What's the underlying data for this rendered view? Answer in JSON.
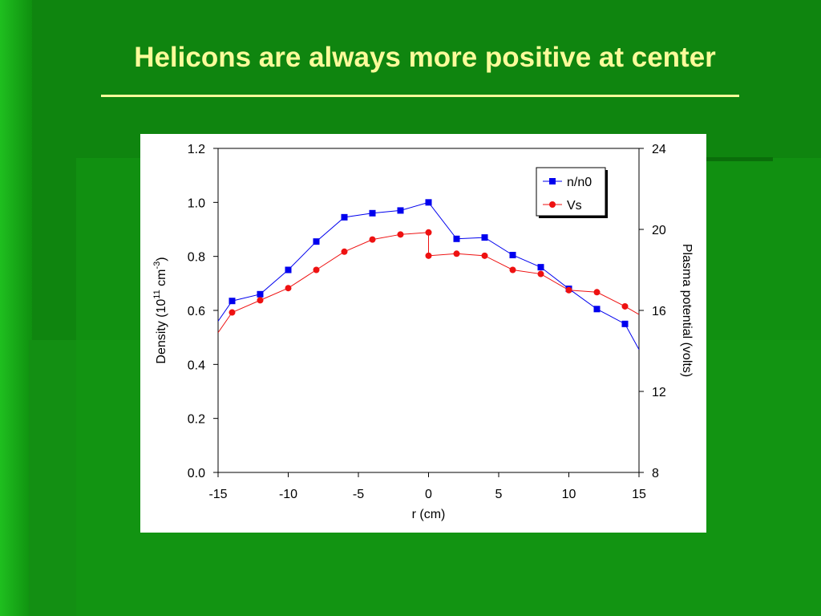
{
  "slide": {
    "title": "Helicons are always more positive at center"
  },
  "colors": {
    "background": "#0f850f",
    "title": "#fbfb9a",
    "series_density": "#0000ee",
    "series_vs": "#ee1111"
  },
  "chart_data": {
    "type": "line",
    "title": "",
    "xlabel": "r (cm)",
    "ylabel_left": "Density (10^11 cm^-3)",
    "ylabel_right": "Plasma potential (volts)",
    "xlim": [
      -15,
      15
    ],
    "ylim_left": [
      0.0,
      1.2
    ],
    "ylim_right": [
      8,
      24
    ],
    "x_ticks": [
      "-15",
      "-10",
      "-5",
      "0",
      "5",
      "10",
      "15"
    ],
    "y_left_ticks": [
      "0.0",
      "0.2",
      "0.4",
      "0.6",
      "0.8",
      "1.0",
      "1.2"
    ],
    "y_right_ticks": [
      "8",
      "12",
      "16",
      "20",
      "24"
    ],
    "legend_position": "top-right",
    "grid": false,
    "series": [
      {
        "name": "n/n0",
        "axis": "left",
        "marker": "square",
        "color": "#0000ee",
        "x": [
          -14,
          -12,
          -10,
          -8,
          -6,
          -4,
          -2,
          0,
          2,
          4,
          6,
          8,
          10,
          12,
          14
        ],
        "y": [
          0.635,
          0.66,
          0.75,
          0.855,
          0.945,
          0.96,
          0.97,
          1.0,
          0.865,
          0.87,
          0.805,
          0.76,
          0.68,
          0.605,
          0.55
        ],
        "extend_left": [
          -15,
          0.56
        ],
        "extend_right": [
          15,
          0.455
        ]
      },
      {
        "name": "Vs",
        "axis": "right",
        "marker": "circle",
        "color": "#ee1111",
        "x": [
          -14,
          -12,
          -10,
          -8,
          -6,
          -4,
          -2,
          0,
          0,
          2,
          4,
          6,
          8,
          10,
          12,
          14
        ],
        "y": [
          15.9,
          16.5,
          17.1,
          18.0,
          18.9,
          19.5,
          19.75,
          19.85,
          18.7,
          18.8,
          18.7,
          18.0,
          17.8,
          17.0,
          16.9,
          16.2
        ],
        "extend_left": [
          -15,
          14.9
        ],
        "extend_right": [
          15,
          15.8
        ]
      }
    ]
  }
}
